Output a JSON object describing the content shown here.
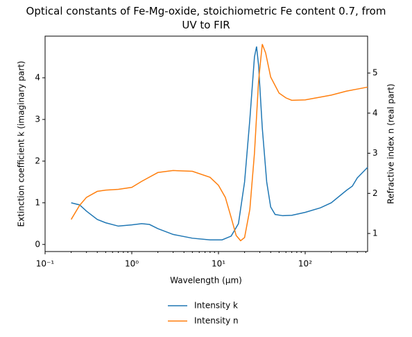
{
  "chart_data": {
    "type": "line",
    "title": "Optical constants of Fe-Mg-oxide, stoichiometric Fe content 0.7, from\nUV to FIR",
    "xlabel": "Wavelength (μm)",
    "ylabel": "Extinction coefficient k (imaginary part)",
    "y2label": "Refractive index n (real part)",
    "xscale": "log",
    "xlim": [
      0.1,
      525
    ],
    "xticks": [
      {
        "value": 0.1,
        "label": "10⁻¹"
      },
      {
        "value": 1,
        "label": "10⁰"
      },
      {
        "value": 10,
        "label": "10¹"
      },
      {
        "value": 100,
        "label": "10²"
      }
    ],
    "ylim": [
      -0.17,
      5.0
    ],
    "yticks": [
      0,
      1,
      2,
      3,
      4
    ],
    "y2lim": [
      0.55,
      5.92
    ],
    "y2ticks": [
      1,
      2,
      3,
      4,
      5
    ],
    "legend": "below",
    "series": [
      {
        "name": "Intensity k",
        "color": "#1f77b4",
        "x": [
          0.2,
          0.25,
          0.3,
          0.4,
          0.5,
          0.7,
          1.0,
          1.3,
          1.6,
          2,
          3,
          5,
          8,
          11,
          14,
          17,
          20,
          23,
          26,
          27.5,
          29,
          32,
          36,
          40,
          45,
          55,
          70,
          100,
          150,
          200,
          300,
          350,
          400,
          525
        ],
        "values": [
          1.0,
          0.95,
          0.8,
          0.6,
          0.52,
          0.44,
          0.47,
          0.5,
          0.48,
          0.38,
          0.24,
          0.15,
          0.11,
          0.11,
          0.2,
          0.5,
          1.5,
          3.0,
          4.5,
          4.75,
          4.3,
          2.8,
          1.5,
          0.9,
          0.72,
          0.69,
          0.7,
          0.77,
          0.88,
          1.0,
          1.3,
          1.4,
          1.6,
          1.85
        ]
      },
      {
        "name": "Intensity n",
        "color": "#ff7f0e",
        "axis": "y2",
        "x": [
          0.2,
          0.25,
          0.3,
          0.4,
          0.5,
          0.7,
          1.0,
          1.3,
          2,
          3,
          5,
          8,
          10,
          12,
          14,
          16,
          18,
          20,
          23,
          26,
          29,
          32,
          35,
          40,
          50,
          60,
          70,
          100,
          150,
          200,
          300,
          400,
          525
        ],
        "values": [
          1.35,
          1.7,
          1.9,
          2.05,
          2.08,
          2.1,
          2.15,
          2.3,
          2.52,
          2.57,
          2.55,
          2.4,
          2.2,
          1.9,
          1.4,
          0.95,
          0.82,
          0.9,
          1.6,
          3.0,
          4.8,
          5.72,
          5.5,
          4.9,
          4.5,
          4.38,
          4.32,
          4.33,
          4.4,
          4.45,
          4.55,
          4.6,
          4.65
        ]
      }
    ]
  }
}
